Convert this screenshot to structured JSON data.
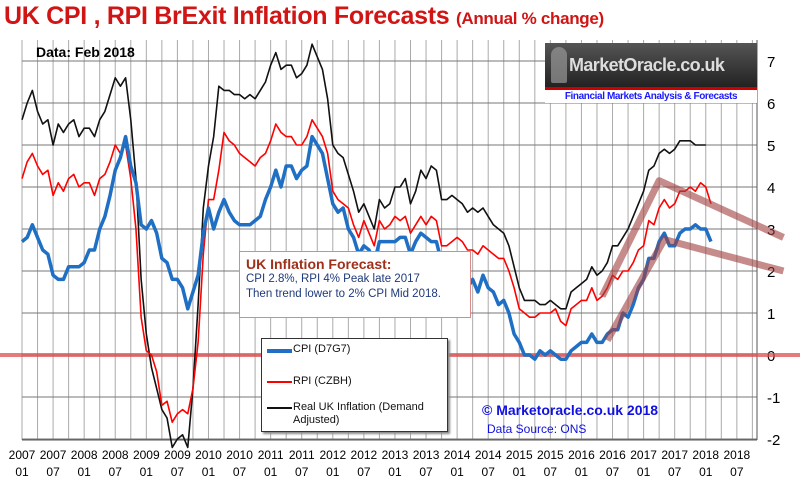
{
  "chart_data": {
    "type": "line",
    "title": "UK CPI , RPI BrExit Inflation Forecasts",
    "subtitle": "(Annual % change)",
    "data_date": "Data:  Feb 2018",
    "x_start": "2007-01",
    "x_unit": "month",
    "x_ticks": [
      {
        "year": "2007",
        "month": "01"
      },
      {
        "year": "2007",
        "month": "07"
      },
      {
        "year": "2008",
        "month": "01"
      },
      {
        "year": "2008",
        "month": "07"
      },
      {
        "year": "2009",
        "month": "01"
      },
      {
        "year": "2009",
        "month": "07"
      },
      {
        "year": "2010",
        "month": "01"
      },
      {
        "year": "2010",
        "month": "07"
      },
      {
        "year": "2011",
        "month": "01"
      },
      {
        "year": "2011",
        "month": "07"
      },
      {
        "year": "2012",
        "month": "01"
      },
      {
        "year": "2012",
        "month": "07"
      },
      {
        "year": "2013",
        "month": "01"
      },
      {
        "year": "2013",
        "month": "07"
      },
      {
        "year": "2014",
        "month": "01"
      },
      {
        "year": "2014",
        "month": "07"
      },
      {
        "year": "2015",
        "month": "01"
      },
      {
        "year": "2015",
        "month": "07"
      },
      {
        "year": "2016",
        "month": "01"
      },
      {
        "year": "2016",
        "month": "07"
      },
      {
        "year": "2017",
        "month": "01"
      },
      {
        "year": "2017",
        "month": "07"
      },
      {
        "year": "2018",
        "month": "01"
      },
      {
        "year": "2018",
        "month": "07"
      }
    ],
    "ylim": [
      -2,
      7.5
    ],
    "y_ticks": [
      -2,
      -1,
      0,
      1,
      2,
      3,
      4,
      5,
      6,
      7
    ],
    "grid": true,
    "series": [
      {
        "name": "Real UK Inflation (Demand Adjusted)",
        "color": "#111111",
        "values": [
          5.6,
          6.0,
          6.3,
          5.8,
          5.5,
          5.6,
          5.0,
          5.5,
          5.3,
          5.5,
          5.6,
          5.2,
          5.4,
          5.4,
          5.2,
          5.6,
          5.8,
          6.2,
          6.6,
          6.4,
          6.6,
          5.6,
          4.2,
          1.8,
          0.5,
          -0.3,
          -0.8,
          -1.3,
          -1.5,
          -2.2,
          -2.0,
          -1.9,
          -2.2,
          -0.8,
          1.2,
          3.5,
          4.5,
          5.2,
          6.4,
          6.3,
          6.3,
          6.2,
          6.2,
          6.1,
          6.2,
          6.1,
          6.3,
          6.5,
          6.9,
          7.2,
          6.8,
          6.9,
          6.9,
          6.6,
          6.7,
          6.9,
          7.4,
          7.1,
          6.8,
          6.1,
          5.0,
          4.8,
          4.7,
          4.3,
          3.9,
          3.4,
          3.6,
          3.3,
          3.0,
          3.7,
          3.5,
          3.6,
          4.0,
          4.0,
          4.2,
          3.6,
          3.9,
          4.4,
          4.2,
          4.5,
          4.4,
          3.7,
          3.7,
          3.8,
          3.7,
          3.6,
          3.4,
          3.5,
          3.4,
          3.5,
          3.3,
          3.1,
          3.0,
          2.9,
          2.6,
          2.1,
          1.6,
          1.3,
          1.3,
          1.3,
          1.2,
          1.2,
          1.3,
          1.2,
          1.1,
          1.1,
          1.5,
          1.6,
          1.7,
          1.8,
          2.1,
          1.9,
          2.0,
          2.2,
          2.6,
          2.6,
          2.8,
          3.0,
          3.3,
          3.6,
          3.9,
          4.4,
          4.5,
          4.8,
          4.9,
          4.8,
          4.9,
          5.1,
          5.1,
          5.1,
          5.0,
          5.0,
          5.0
        ]
      },
      {
        "name": "RPI (CZBH)",
        "color": "#ff0000",
        "values": [
          4.2,
          4.6,
          4.8,
          4.5,
          4.3,
          4.4,
          3.8,
          4.1,
          3.9,
          4.2,
          4.3,
          4.0,
          4.1,
          4.1,
          3.8,
          4.2,
          4.3,
          4.6,
          5.0,
          4.8,
          5.0,
          4.2,
          3.0,
          0.9,
          0.1,
          0.0,
          -0.4,
          -1.2,
          -1.1,
          -1.6,
          -1.4,
          -1.3,
          -1.4,
          -0.8,
          0.3,
          2.4,
          3.7,
          3.7,
          4.4,
          5.3,
          5.1,
          5.0,
          4.8,
          4.7,
          4.6,
          4.5,
          4.7,
          4.8,
          5.1,
          5.5,
          5.3,
          5.2,
          5.2,
          5.0,
          5.0,
          5.2,
          5.6,
          5.4,
          5.2,
          4.8,
          3.9,
          3.7,
          3.6,
          3.5,
          3.1,
          2.8,
          3.2,
          2.9,
          2.6,
          3.2,
          3.0,
          3.1,
          3.3,
          3.2,
          3.3,
          2.9,
          3.1,
          3.3,
          3.1,
          3.3,
          3.2,
          2.6,
          2.6,
          2.7,
          2.8,
          2.7,
          2.5,
          2.5,
          2.4,
          2.6,
          2.5,
          2.4,
          2.3,
          2.3,
          2.0,
          1.6,
          1.1,
          1.0,
          0.9,
          0.9,
          1.0,
          1.0,
          1.0,
          1.1,
          0.8,
          0.7,
          1.1,
          1.2,
          1.3,
          1.3,
          1.6,
          1.3,
          1.4,
          1.6,
          1.9,
          1.8,
          2.0,
          2.0,
          2.2,
          2.5,
          2.6,
          3.2,
          3.1,
          3.5,
          3.7,
          3.5,
          3.6,
          3.9,
          3.9,
          4.0,
          3.9,
          4.1,
          4.0,
          3.6
        ]
      },
      {
        "name": "CPI (D7G7)",
        "color": "#1f6fc4",
        "values": [
          2.7,
          2.8,
          3.1,
          2.8,
          2.5,
          2.4,
          1.9,
          1.8,
          1.8,
          2.1,
          2.1,
          2.1,
          2.2,
          2.5,
          2.5,
          3.0,
          3.3,
          3.8,
          4.4,
          4.7,
          5.2,
          4.5,
          4.1,
          3.1,
          3.0,
          3.2,
          2.9,
          2.3,
          2.2,
          1.8,
          1.8,
          1.6,
          1.1,
          1.5,
          1.9,
          2.9,
          3.5,
          3.0,
          3.4,
          3.7,
          3.4,
          3.2,
          3.1,
          3.1,
          3.1,
          3.2,
          3.3,
          3.7,
          4.0,
          4.4,
          4.0,
          4.5,
          4.5,
          4.2,
          4.4,
          4.5,
          5.2,
          5.0,
          4.8,
          4.2,
          3.6,
          3.4,
          3.5,
          3.0,
          2.8,
          2.4,
          2.6,
          2.5,
          2.2,
          2.7,
          2.7,
          2.7,
          2.7,
          2.8,
          2.8,
          2.4,
          2.7,
          2.9,
          2.8,
          2.7,
          2.7,
          2.2,
          2.1,
          2.0,
          1.9,
          1.7,
          1.6,
          1.8,
          1.5,
          1.9,
          1.6,
          1.5,
          1.2,
          1.3,
          1.0,
          0.5,
          0.3,
          0.0,
          0.0,
          -0.1,
          0.1,
          0.0,
          0.1,
          0.0,
          -0.1,
          -0.1,
          0.1,
          0.2,
          0.3,
          0.3,
          0.5,
          0.3,
          0.3,
          0.5,
          0.6,
          0.6,
          1.0,
          0.9,
          1.2,
          1.6,
          1.8,
          2.3,
          2.3,
          2.7,
          2.9,
          2.6,
          2.6,
          2.9,
          3.0,
          3.0,
          3.1,
          3.0,
          3.0,
          2.7
        ]
      }
    ],
    "forecast_trends": [
      {
        "name": "RPI trend",
        "points": [
          [
            112,
            1.4
          ],
          [
            123,
            4.15
          ],
          [
            147,
            2.8
          ]
        ]
      },
      {
        "name": "CPI trend",
        "points": [
          [
            113,
            0.35
          ],
          [
            124,
            2.75
          ],
          [
            147,
            2.0
          ]
        ]
      }
    ],
    "zero_line_color": "#e05050",
    "trend_color": "#a04040"
  },
  "legend": {
    "cpi": "CPI (D7G7)",
    "rpi": "RPI (CZBH)",
    "real_line1": "Real UK Inflation (Demand",
    "real_line2": "Adjusted)"
  },
  "forecast_box": {
    "heading": "UK Inflation Forecast:",
    "line1": "CPI 2.8%, RPI 4% Peak late 2017",
    "line2": "Then trend lower to 2% CPI Mid 2018."
  },
  "logo": {
    "name": "MarketOracle.co.uk",
    "tagline": "Financial Markets Analysis & Forecasts"
  },
  "copyright": "© Marketoracle.co.uk 2018",
  "source": "Data Source: ONS"
}
